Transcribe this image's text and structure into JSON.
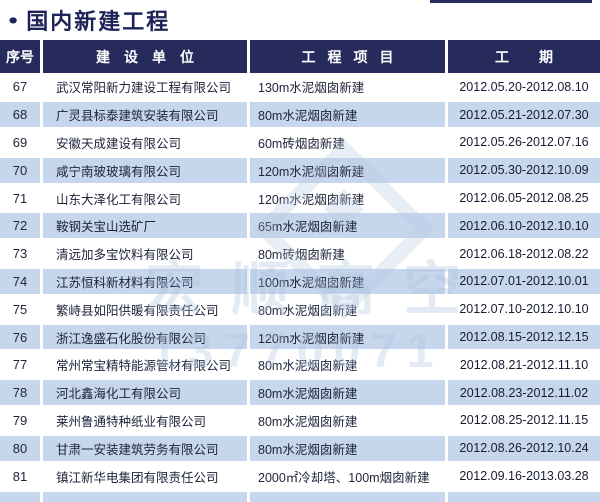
{
  "page": {
    "title": "国内新建工程",
    "bullet_icon": "●"
  },
  "colors": {
    "navy": "#262b5c",
    "stripe_blue": "#c6d6ec",
    "watermark_blue": "#aec4de"
  },
  "table": {
    "headers": {
      "no": "序号",
      "company": "建设单位",
      "project": "工程项目",
      "period": "工期"
    },
    "rows": [
      {
        "no": "67",
        "company": "武汉常阳新力建设工程有限公司",
        "project": "130m水泥烟囱新建",
        "period": "2012.05.20-2012.08.10"
      },
      {
        "no": "68",
        "company": "广灵县标泰建筑安装有限公司",
        "project": "80m水泥烟囱新建",
        "period": "2012.05.21-2012.07.30"
      },
      {
        "no": "69",
        "company": "安徽天成建设有限公司",
        "project": "60m砖烟囱新建",
        "period": "2012.05.26-2012.07.16"
      },
      {
        "no": "70",
        "company": "咸宁南玻玻璃有限公司",
        "project": "120m水泥烟囱新建",
        "period": "2012.05.30-2012.10.09"
      },
      {
        "no": "71",
        "company": "山东大泽化工有限公司",
        "project": "120m水泥烟囱新建",
        "period": "2012.06.05-2012.08.25"
      },
      {
        "no": "72",
        "company": "鞍钢关宝山选矿厂",
        "project": "65m水泥烟囱新建",
        "period": "2012.06.10-2012.10.10"
      },
      {
        "no": "73",
        "company": "清远加多宝饮料有限公司",
        "project": "80m砖烟囱新建",
        "period": "2012.06.18-2012.08.22"
      },
      {
        "no": "74",
        "company": "江苏恒科新材料有限公司",
        "project": "100m水泥烟囱新建",
        "period": "2012.07.01-2012.10.01"
      },
      {
        "no": "75",
        "company": "繁峙县如阳供暖有限责任公司",
        "project": "80m水泥烟囱新建",
        "period": "2012.07.10-2012.10.10"
      },
      {
        "no": "76",
        "company": "浙江逸盛石化股份有限公司",
        "project": "120m水泥烟囱新建",
        "period": "2012.08.15-2012.12.15"
      },
      {
        "no": "77",
        "company": "常州常宝精特能源管材有限公司",
        "project": "80m水泥烟囱新建",
        "period": "2012.08.21-2012.11.10"
      },
      {
        "no": "78",
        "company": "河北鑫海化工有限公司",
        "project": "80m水泥烟囱新建",
        "period": "2012.08.23-2012.11.02"
      },
      {
        "no": "79",
        "company": "莱州鲁通特种纸业有限公司",
        "project": "80m水泥烟囱新建",
        "period": "2012.08.25-2012.11.15"
      },
      {
        "no": "80",
        "company": "甘肃一安装建筑劳务有限公司",
        "project": "80m水泥烟囱新建",
        "period": "2012.08.26-2012.10.24"
      },
      {
        "no": "81",
        "company": "镇江新华电集团有限责任公司",
        "project": "2000㎡冷却塔、100m烟囱新建",
        "period": "2012.09.16-2013.03.28"
      }
    ]
  },
  "watermark": {
    "logo": "diamond-logo",
    "brand": "宏顺高空",
    "phone": "13770071"
  }
}
